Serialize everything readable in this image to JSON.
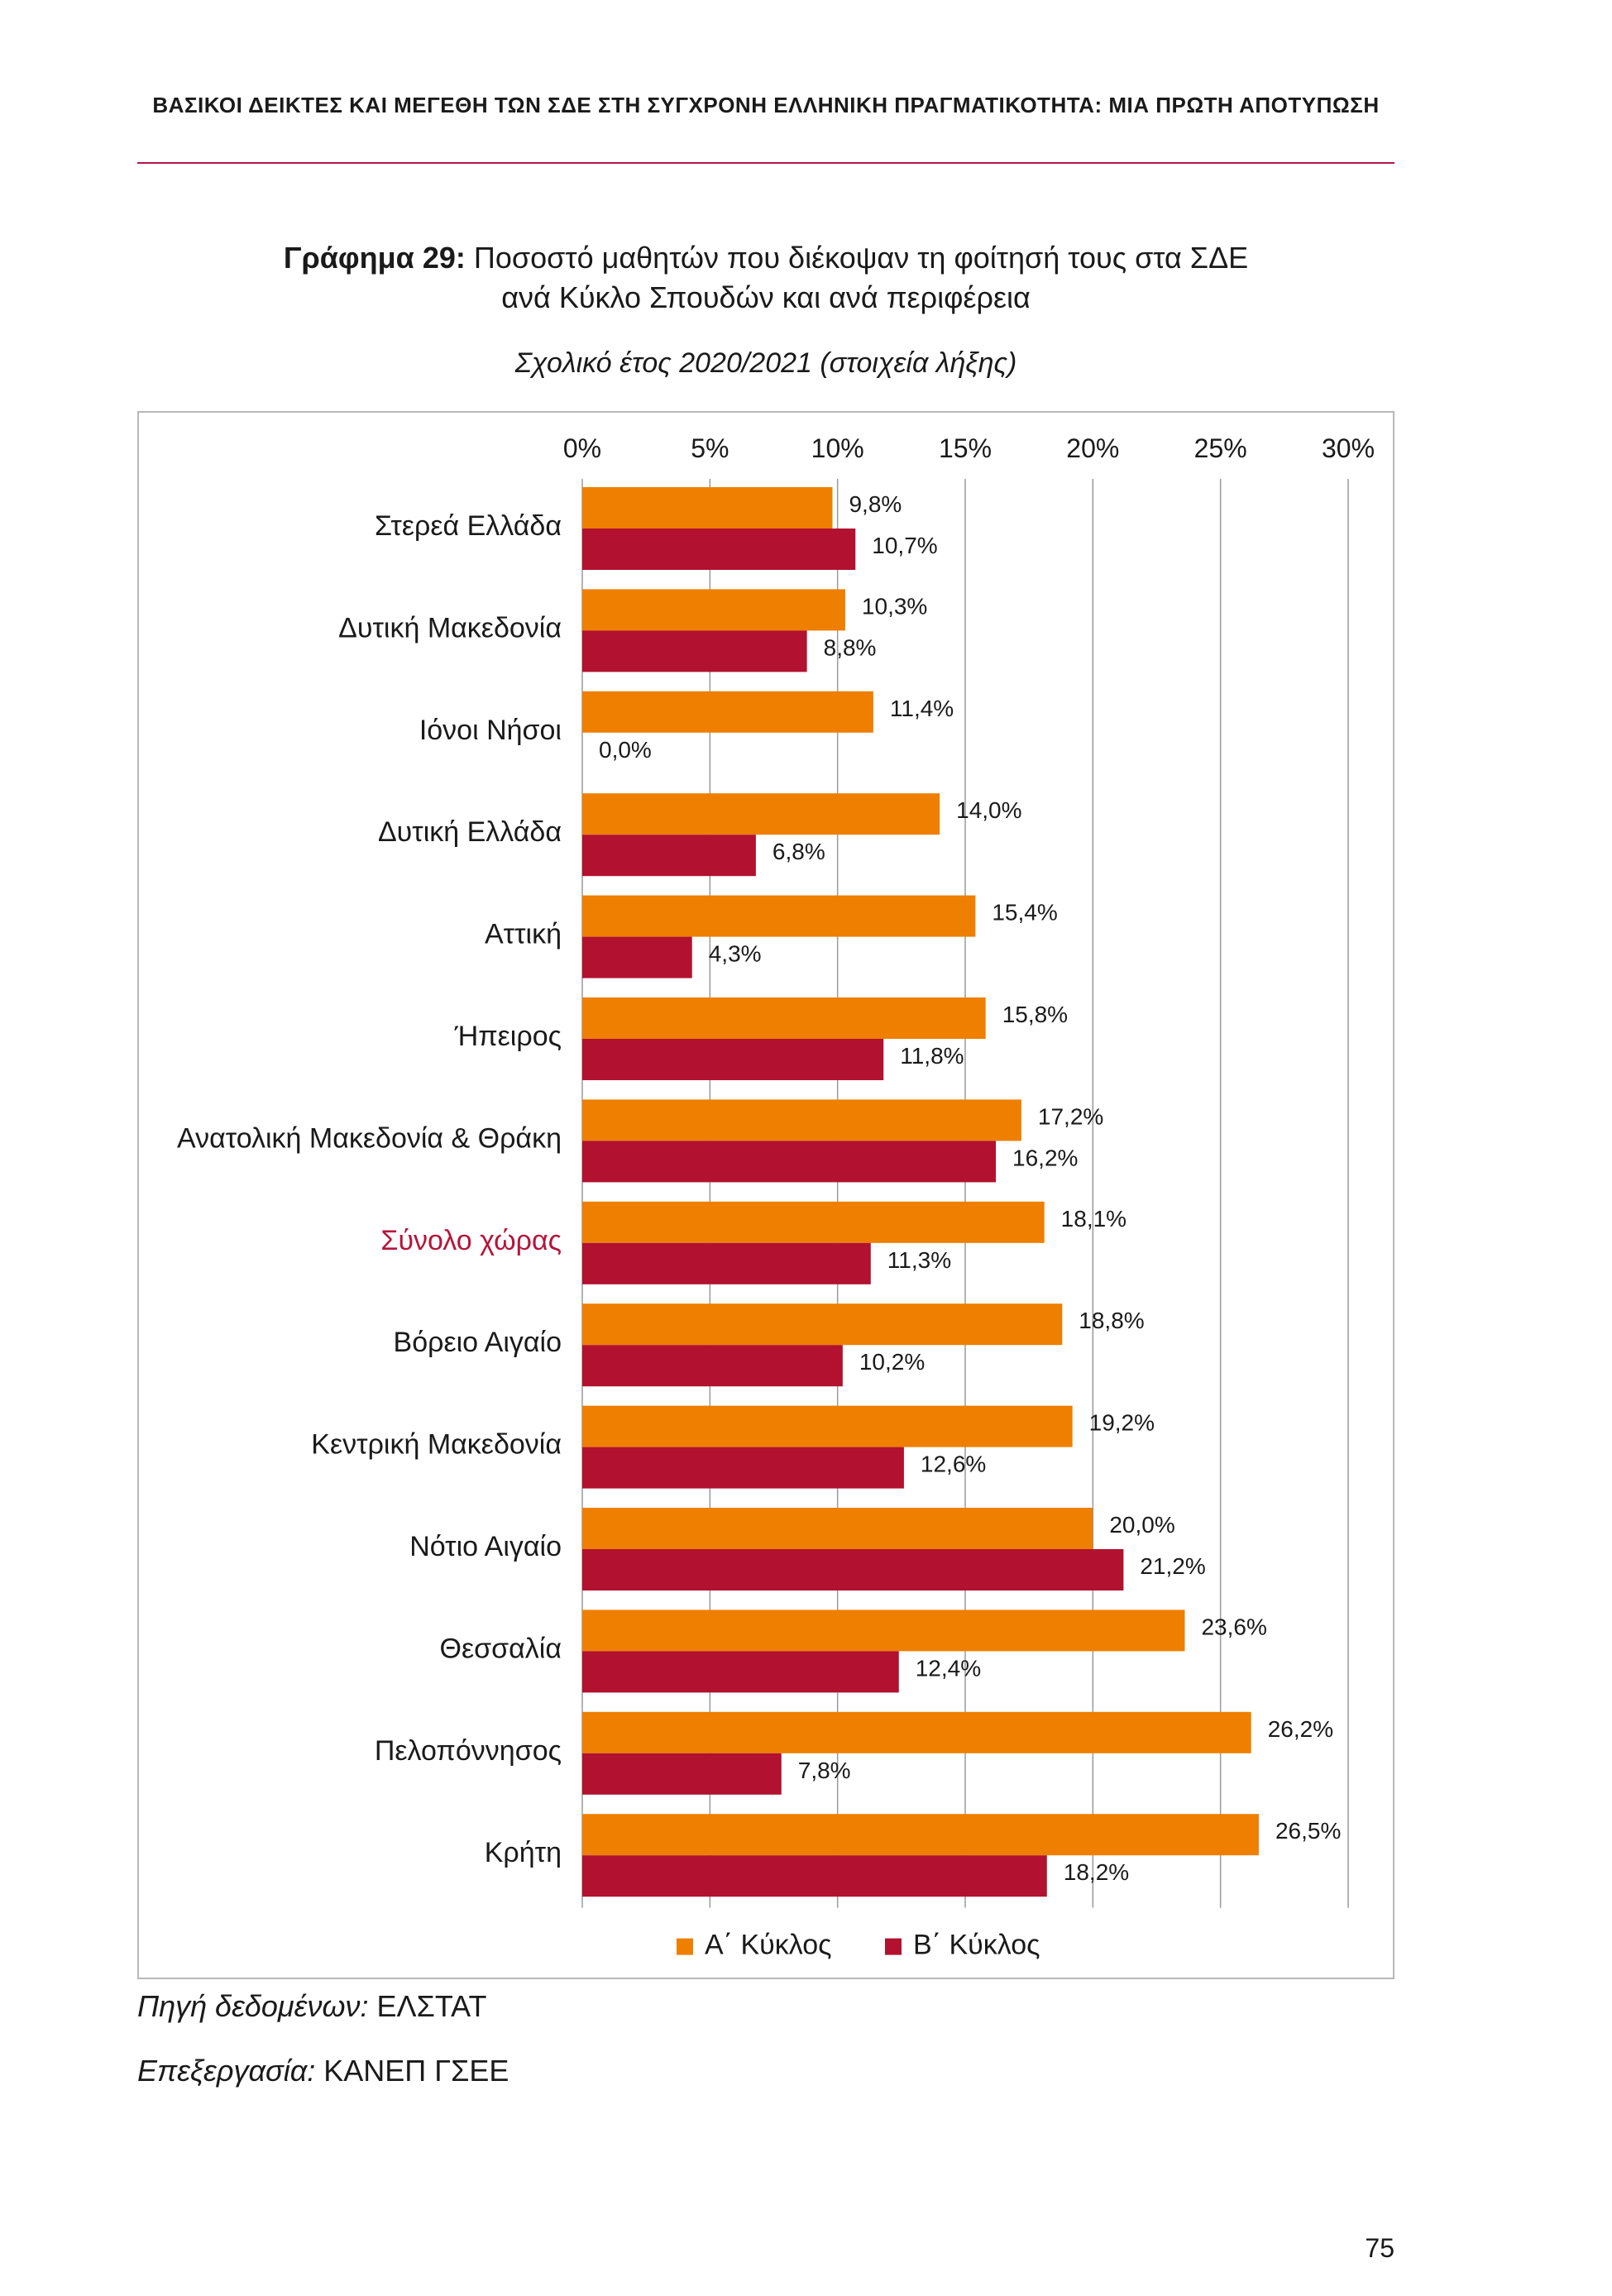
{
  "header": "ΒΑΣΙΚΟΙ ΔΕΙΚΤΕΣ ΚΑΙ ΜΕΓΕΘΗ ΤΩΝ ΣΔΕ ΣΤΗ ΣΥΓΧΡΟΝΗ ΕΛΛΗΝΙΚΗ ΠΡΑΓΜΑΤΙΚΟΤΗΤΑ: ΜΙΑ ΠΡΩΤΗ ΑΠΟΤΥΠΩΣΗ",
  "figure": {
    "label": "Γράφημα 29:",
    "title_line1": "Ποσοστό μαθητών που διέκοψαν τη φοίτησή τους στα ΣΔΕ",
    "title_line2": "ανά Κύκλο Σπουδών και ανά περιφέρεια",
    "subtitle": "Σχολικό έτος 2020/2021 (στοιχεία λήξης)"
  },
  "chart_data": {
    "type": "bar",
    "orientation": "horizontal",
    "x_ticks": [
      "0%",
      "5%",
      "10%",
      "15%",
      "20%",
      "25%",
      "30%"
    ],
    "xlim": [
      0,
      30
    ],
    "x_axis_position": "top",
    "grid": true,
    "legend_position": "bottom",
    "highlight_category": "Σύνολο χώρας",
    "highlight_color": "#b5153a",
    "categories": [
      "Στερεά Ελλάδα",
      "Δυτική Μακεδονία",
      "Ιόνοι Νήσοι",
      "Δυτική Ελλάδα",
      "Αττική",
      "Ήπειρος",
      "Ανατολική Μακεδονία & Θράκη",
      "Σύνολο χώρας",
      "Βόρειο Αιγαίο",
      "Κεντρική Μακεδονία",
      "Νότιο Αιγαίο",
      "Θεσσαλία",
      "Πελοπόννησος",
      "Κρήτη"
    ],
    "series": [
      {
        "name": "Α΄ Κύκλος",
        "color": "#ee7f00",
        "values": [
          9.8,
          10.3,
          11.4,
          14.0,
          15.4,
          15.8,
          17.2,
          18.1,
          18.8,
          19.2,
          20.0,
          23.6,
          26.2,
          26.5
        ],
        "labels": [
          "9,8%",
          "10,3%",
          "11,4%",
          "14,0%",
          "15,4%",
          "15,8%",
          "17,2%",
          "18,1%",
          "18,8%",
          "19,2%",
          "20,0%",
          "23,6%",
          "26,2%",
          "26,5%"
        ]
      },
      {
        "name": "Β΄ Κύκλος",
        "color": "#b2112f",
        "values": [
          10.7,
          8.8,
          0.0,
          6.8,
          4.3,
          11.8,
          16.2,
          11.3,
          10.2,
          12.6,
          21.2,
          12.4,
          7.8,
          18.2
        ],
        "labels": [
          "10,7%",
          "8,8%",
          "0,0%",
          "6,8%",
          "4,3%",
          "11,8%",
          "16,2%",
          "11,3%",
          "10,2%",
          "12,6%",
          "21,2%",
          "12,4%",
          "7,8%",
          "18,2%"
        ]
      }
    ]
  },
  "footer": {
    "source_label": "Πηγή δεδομένων:",
    "source_value": "ΕΛΣΤΑΤ",
    "processing_label": "Επεξεργασία:",
    "processing_value": "ΚΑΝΕΠ ΓΣΕΕ"
  },
  "page_number": "75"
}
